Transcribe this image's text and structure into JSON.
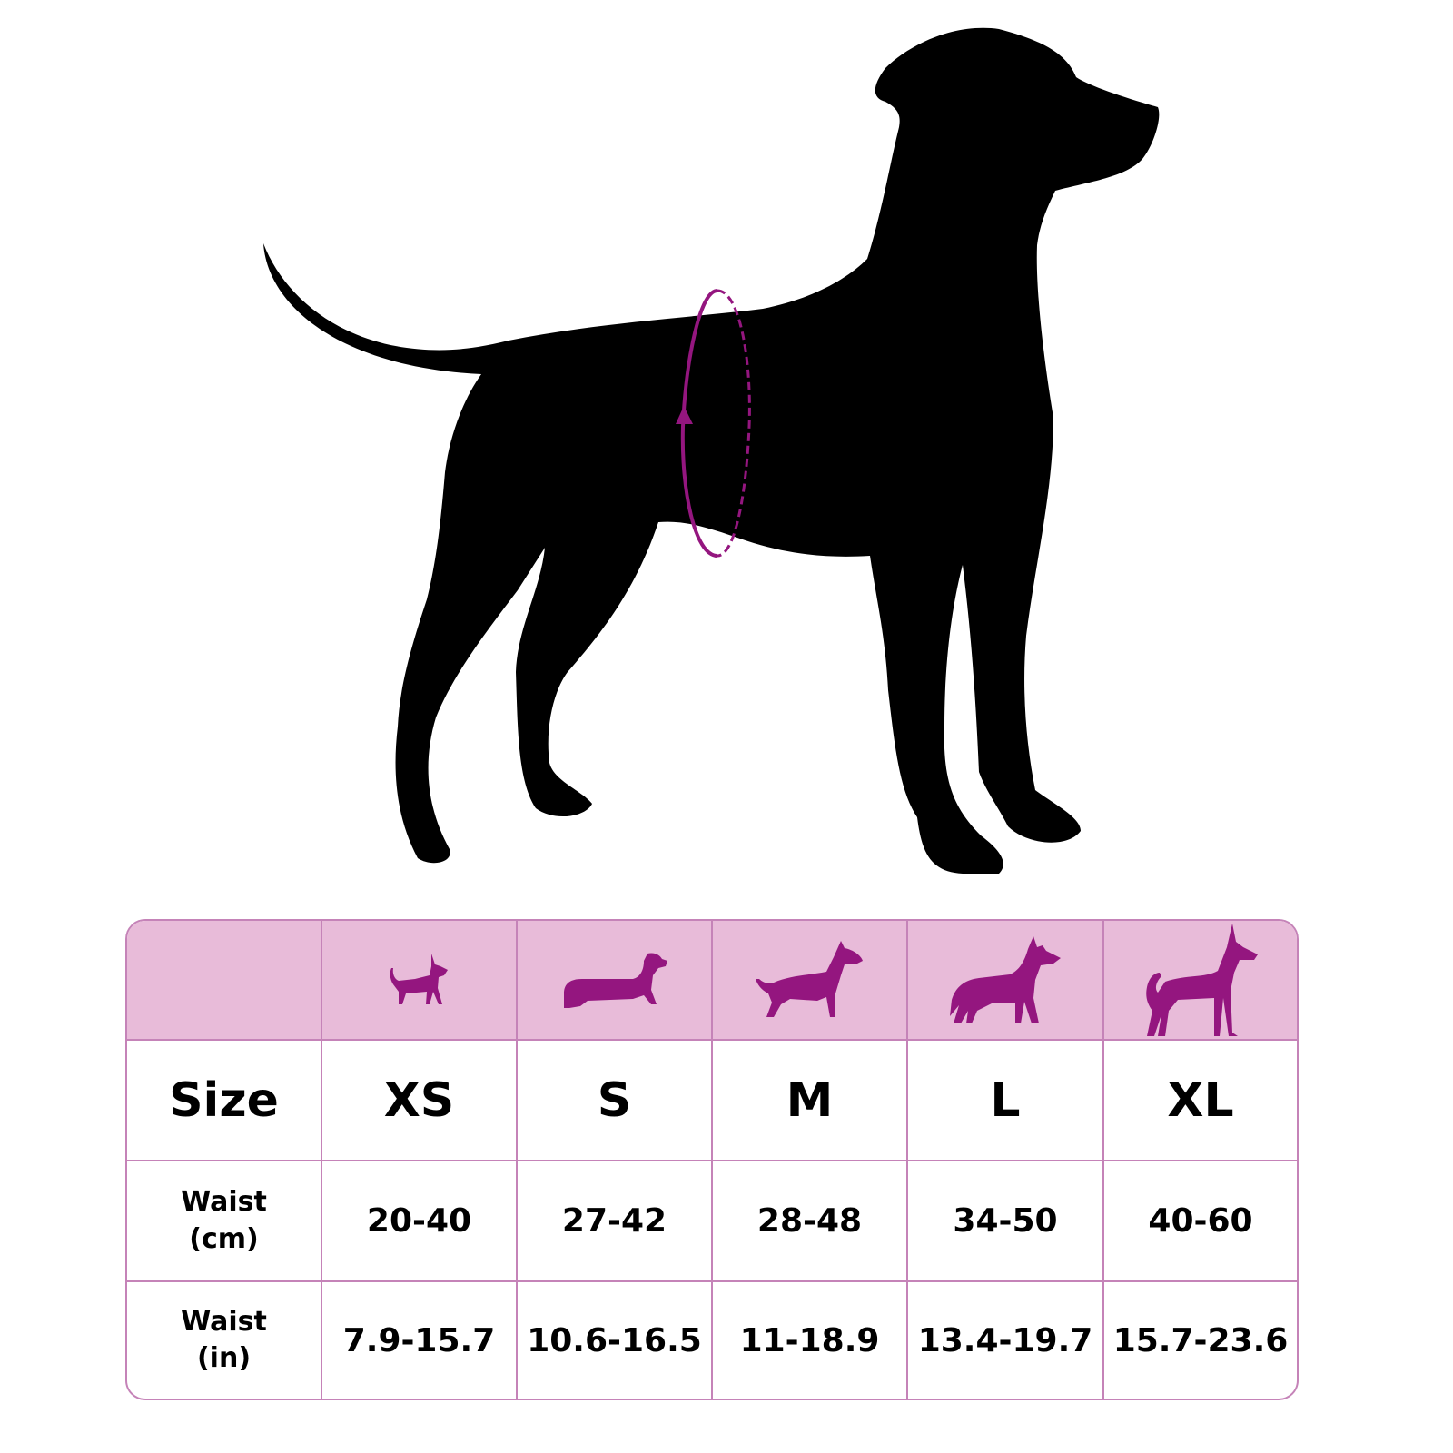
{
  "colors": {
    "accent": "#94167f",
    "header_bg": "#e8bbd9",
    "border": "#c583b8",
    "silhouette": "#000000"
  },
  "illustration": {
    "subject": "dog-silhouette-icon",
    "measure": "waist-measure-loop-icon"
  },
  "table": {
    "size_label": "Size",
    "waist_cm_label": "Waist\n(cm)",
    "waist_in_label": "Waist\n(in)",
    "columns": [
      {
        "icon": "chihuahua-icon",
        "size": "XS",
        "waist_cm": "20-40",
        "waist_in": "7.9-15.7"
      },
      {
        "icon": "dachshund-icon",
        "size": "S",
        "waist_cm": "27-42",
        "waist_in": "10.6-16.5"
      },
      {
        "icon": "bull-terrier-icon",
        "size": "M",
        "waist_cm": "28-48",
        "waist_in": "11-18.9"
      },
      {
        "icon": "shepherd-icon",
        "size": "L",
        "waist_cm": "34-50",
        "waist_in": "13.4-19.7"
      },
      {
        "icon": "great-dane-icon",
        "size": "XL",
        "waist_cm": "40-60",
        "waist_in": "15.7-23.6"
      }
    ]
  }
}
